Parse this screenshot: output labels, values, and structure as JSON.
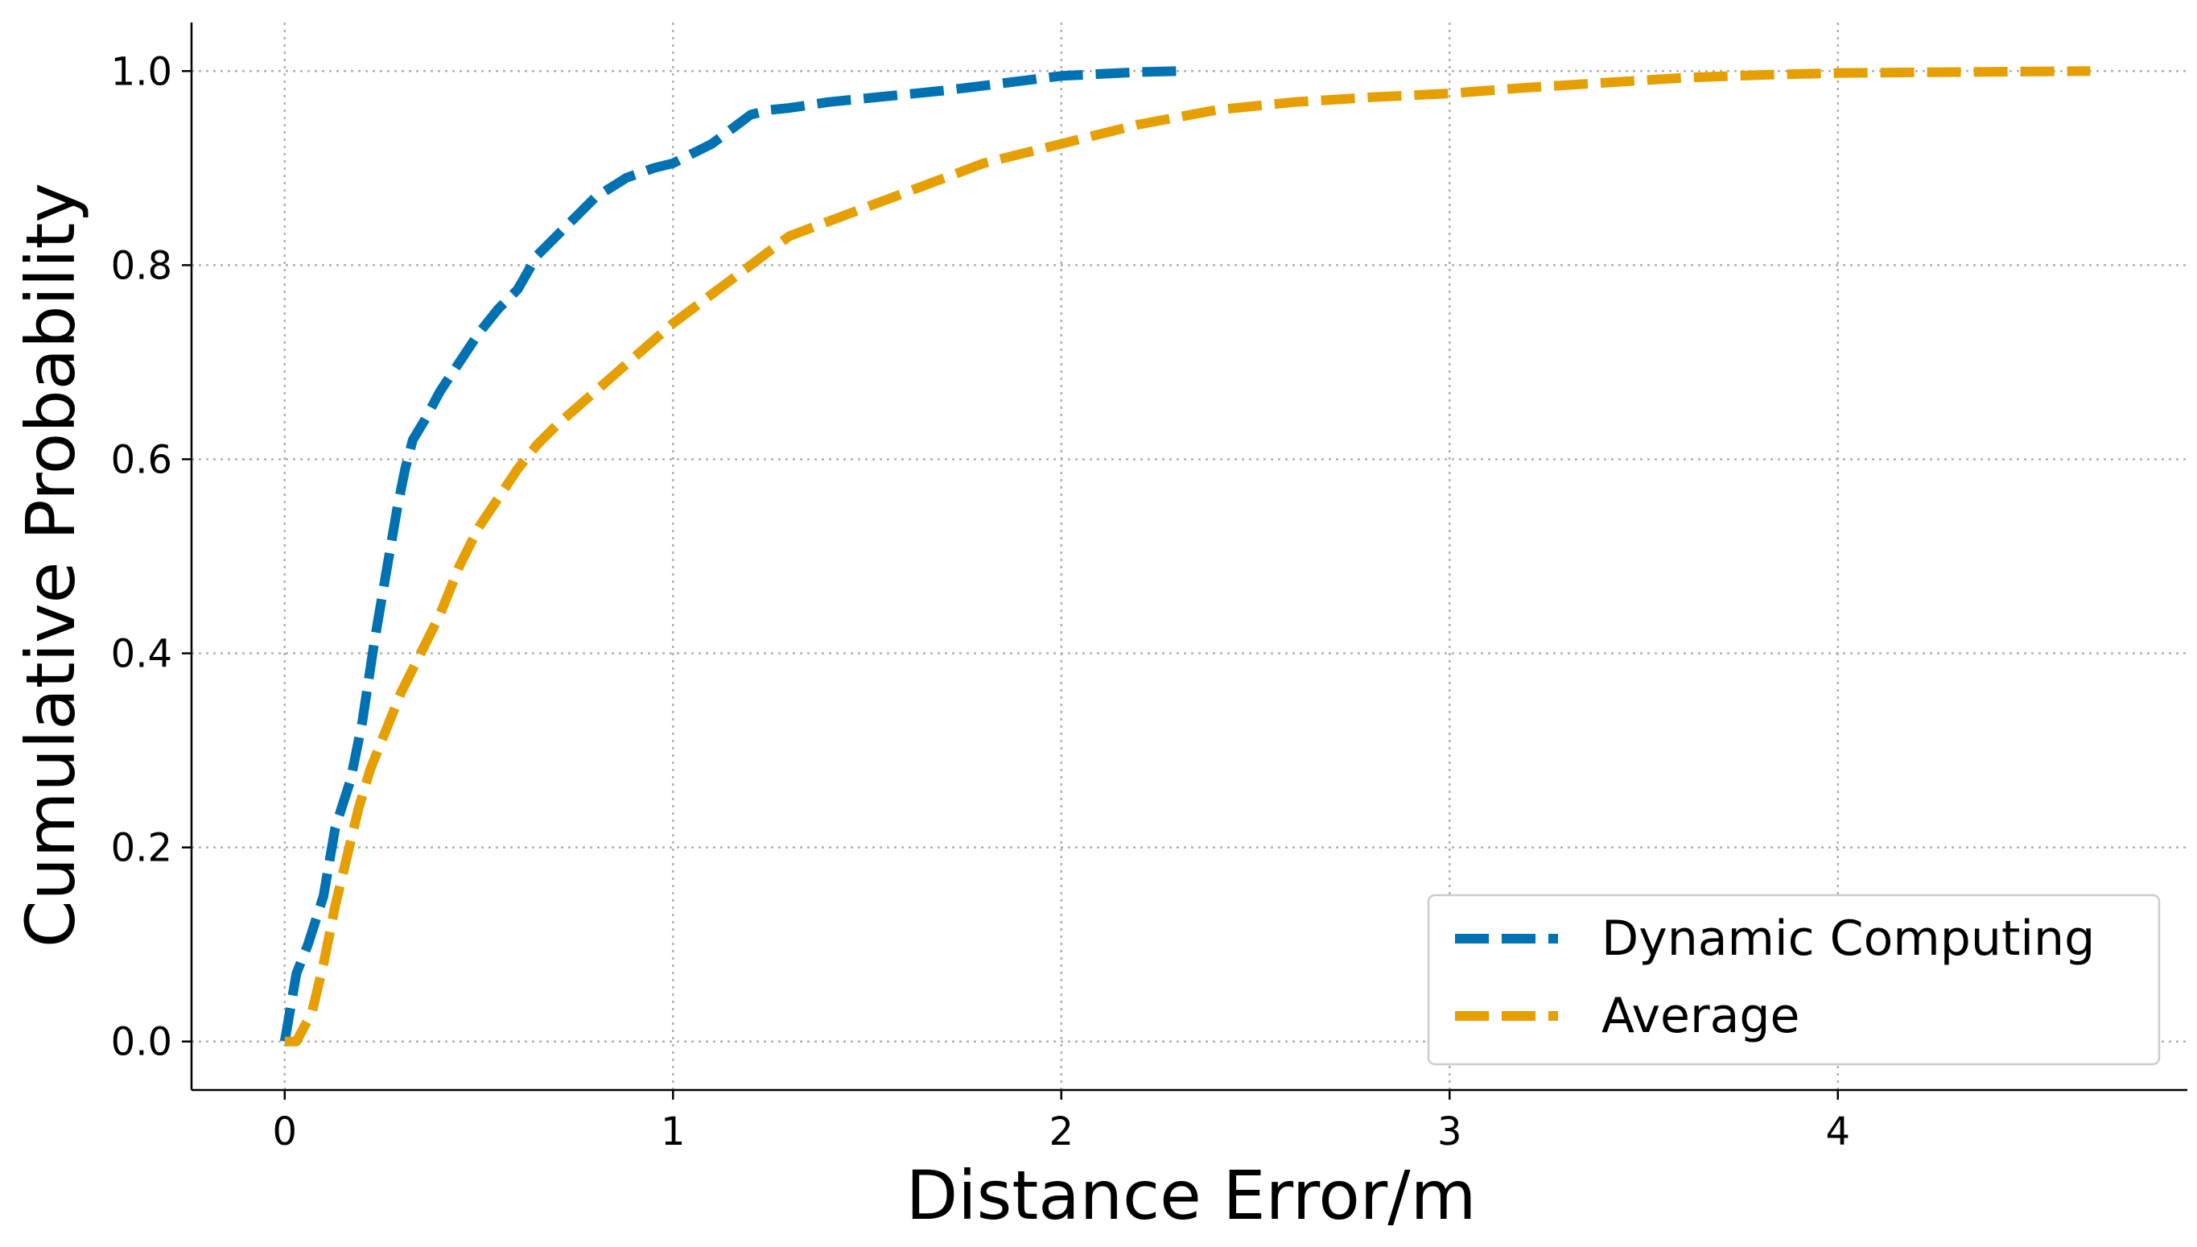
{
  "chart_data": {
    "type": "line",
    "title": "",
    "xlabel": "Distance Error/m",
    "ylabel": "Cumulative Probability",
    "xlim": [
      -0.24,
      4.9
    ],
    "ylim": [
      -0.05,
      1.05
    ],
    "xticks": [
      0,
      1,
      2,
      3,
      4
    ],
    "xtick_labels": [
      "0",
      "1",
      "2",
      "3",
      "4"
    ],
    "yticks": [
      0.0,
      0.2,
      0.4,
      0.6,
      0.8,
      1.0
    ],
    "ytick_labels": [
      "0.0",
      "0.2",
      "0.4",
      "0.6",
      "0.8",
      "1.0"
    ],
    "grid": true,
    "legend_position": "bottom-right",
    "series": [
      {
        "name": "Dynamic Computing",
        "color": "#0072B2",
        "x": [
          0.0,
          0.03,
          0.06,
          0.1,
          0.13,
          0.17,
          0.2,
          0.23,
          0.26,
          0.29,
          0.31,
          0.33,
          0.36,
          0.4,
          0.45,
          0.5,
          0.55,
          0.6,
          0.65,
          0.7,
          0.75,
          0.8,
          0.88,
          0.95,
          1.0,
          1.05,
          1.1,
          1.15,
          1.2,
          1.25,
          1.3,
          1.4,
          1.5,
          1.6,
          1.7,
          1.8,
          1.9,
          2.0,
          2.1,
          2.2,
          2.3
        ],
        "y": [
          0.0,
          0.07,
          0.1,
          0.15,
          0.22,
          0.27,
          0.33,
          0.41,
          0.48,
          0.55,
          0.59,
          0.62,
          0.64,
          0.67,
          0.7,
          0.73,
          0.755,
          0.775,
          0.81,
          0.83,
          0.85,
          0.87,
          0.89,
          0.9,
          0.905,
          0.915,
          0.925,
          0.94,
          0.955,
          0.96,
          0.962,
          0.968,
          0.972,
          0.976,
          0.98,
          0.985,
          0.99,
          0.995,
          0.997,
          0.999,
          1.0
        ]
      },
      {
        "name": "Average",
        "color": "#E69F00",
        "x": [
          0.0,
          0.03,
          0.07,
          0.1,
          0.13,
          0.16,
          0.19,
          0.22,
          0.26,
          0.3,
          0.35,
          0.4,
          0.45,
          0.5,
          0.55,
          0.6,
          0.65,
          0.7,
          0.8,
          0.9,
          1.0,
          1.1,
          1.2,
          1.3,
          1.4,
          1.5,
          1.6,
          1.7,
          1.8,
          1.9,
          2.0,
          2.1,
          2.2,
          2.4,
          2.6,
          2.8,
          3.0,
          3.2,
          3.4,
          3.6,
          3.8,
          4.0,
          4.3,
          4.65
        ],
        "y": [
          0.0,
          0.0,
          0.03,
          0.08,
          0.14,
          0.19,
          0.24,
          0.28,
          0.32,
          0.36,
          0.4,
          0.44,
          0.49,
          0.53,
          0.56,
          0.59,
          0.615,
          0.635,
          0.67,
          0.705,
          0.74,
          0.77,
          0.8,
          0.83,
          0.845,
          0.86,
          0.875,
          0.89,
          0.905,
          0.915,
          0.925,
          0.935,
          0.945,
          0.96,
          0.968,
          0.973,
          0.977,
          0.983,
          0.988,
          0.993,
          0.996,
          0.998,
          0.999,
          1.0
        ]
      }
    ]
  }
}
